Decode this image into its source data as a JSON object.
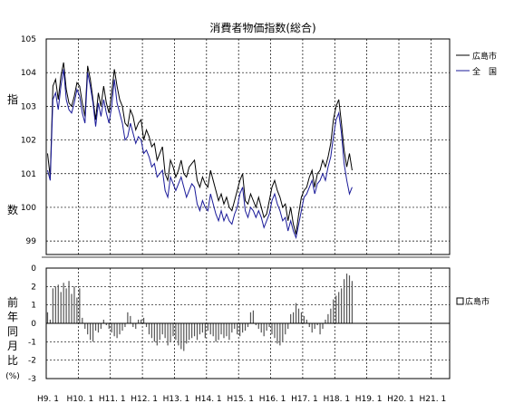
{
  "chart_data": [
    {
      "type": "line",
      "title": "消費者物価指数(総合)",
      "ylabel": [
        "指",
        "数"
      ],
      "ylim": [
        98.6,
        105
      ],
      "yticks": [
        99,
        100,
        101,
        102,
        103,
        104,
        105
      ],
      "grid": true,
      "legend_position": "right",
      "x_start": "H9.1",
      "x_step": "1 month",
      "series": [
        {
          "name": "広島市",
          "color": "#000000",
          "values": [
            101.6,
            100.9,
            103.6,
            103.8,
            103.2,
            103.9,
            104.3,
            103.5,
            103.1,
            103.0,
            103.3,
            103.7,
            103.6,
            103.1,
            102.7,
            104.2,
            103.8,
            103.2,
            102.6,
            103.4,
            103.0,
            103.6,
            103.1,
            102.8,
            103.4,
            104.1,
            103.6,
            103.2,
            103.0,
            102.5,
            102.4,
            102.9,
            102.7,
            102.3,
            102.5,
            102.6,
            102.0,
            102.3,
            102.1,
            101.8,
            101.9,
            101.4,
            101.6,
            101.8,
            101.0,
            100.8,
            101.4,
            101.2,
            100.9,
            101.1,
            101.4,
            101.0,
            100.9,
            101.2,
            101.3,
            101.4,
            100.8,
            100.6,
            100.9,
            100.7,
            100.6,
            101.1,
            100.8,
            100.5,
            100.2,
            100.4,
            100.1,
            100.3,
            100.0,
            99.9,
            100.2,
            100.5,
            100.8,
            101.0,
            100.2,
            100.1,
            100.4,
            100.2,
            100.0,
            100.3,
            100.0,
            99.7,
            99.8,
            100.2,
            100.6,
            100.8,
            100.5,
            100.3,
            100.0,
            100.1,
            99.6,
            100.0,
            99.5,
            99.2,
            99.8,
            100.3,
            100.5,
            100.6,
            100.9,
            101.1,
            100.6,
            101.0,
            101.1,
            101.4,
            101.2,
            101.5,
            101.9,
            102.6,
            103.0,
            103.2,
            102.5,
            101.7,
            101.2,
            101.6,
            101.1
          ]
        },
        {
          "name": "全　国",
          "color": "#1a1a99",
          "values": [
            101.1,
            100.8,
            103.2,
            103.4,
            102.9,
            103.6,
            104.1,
            103.2,
            102.9,
            102.8,
            103.1,
            103.5,
            103.3,
            102.8,
            102.5,
            104.0,
            103.6,
            103.1,
            102.4,
            103.1,
            102.7,
            103.2,
            102.8,
            102.5,
            103.0,
            103.8,
            103.1,
            102.8,
            102.5,
            102.0,
            102.1,
            102.5,
            102.2,
            101.9,
            102.1,
            102.0,
            101.6,
            101.7,
            101.5,
            101.2,
            101.3,
            100.9,
            101.0,
            101.1,
            100.5,
            100.3,
            100.9,
            100.7,
            100.5,
            100.7,
            100.9,
            100.6,
            100.3,
            100.5,
            100.7,
            100.6,
            100.1,
            99.9,
            100.2,
            100.0,
            99.9,
            100.4,
            100.1,
            99.8,
            99.6,
            99.9,
            99.6,
            99.8,
            99.6,
            99.5,
            99.8,
            100.0,
            100.4,
            100.6,
            99.9,
            99.7,
            100.0,
            99.9,
            99.7,
            99.9,
            99.7,
            99.4,
            99.6,
            99.8,
            100.2,
            100.4,
            100.1,
            99.9,
            99.6,
            99.7,
            99.3,
            99.6,
            99.3,
            99.1,
            99.5,
            99.9,
            100.3,
            100.4,
            100.6,
            100.8,
            100.4,
            100.7,
            100.8,
            101.0,
            100.8,
            101.2,
            101.5,
            102.1,
            102.6,
            102.8,
            102.2,
            101.3,
            100.8,
            100.4,
            100.6
          ]
        }
      ]
    },
    {
      "type": "bar",
      "ylabel": [
        "前",
        "年",
        "同",
        "月",
        "比",
        "(%)"
      ],
      "ylim": [
        -3,
        3
      ],
      "yticks": [
        -3,
        -2,
        -1,
        0,
        1,
        2
      ],
      "top_tick": "0",
      "grid": true,
      "legend_position": "right",
      "x_start": "H9.1",
      "x_step": "1 month",
      "xtick_labels": [
        "H9. 1",
        "H10. 1",
        "H11. 1",
        "H12. 1",
        "H13. 1",
        "H14. 1",
        "H15. 1",
        "H16. 1",
        "H17. 1",
        "H18. 1",
        "H19. 1",
        "H20. 1",
        "H21. 1"
      ],
      "series": [
        {
          "name": "広島市",
          "values": [
            0.6,
            0.2,
            1.9,
            2.0,
            2.1,
            1.7,
            2.2,
            1.9,
            2.3,
            1.6,
            2.0,
            1.4,
            1.9,
            0.3,
            -0.3,
            -0.6,
            -0.9,
            -1.0,
            -0.4,
            -0.5,
            -0.3,
            0.2,
            -0.1,
            -0.3,
            -0.5,
            -0.7,
            -0.8,
            -0.6,
            -0.4,
            -0.2,
            0.6,
            0.4,
            -0.2,
            -0.3,
            0.2,
            0.2,
            0.3,
            -0.2,
            -0.6,
            -0.8,
            -1.0,
            -1.2,
            -0.9,
            -0.6,
            -0.8,
            -1.2,
            -1.0,
            -0.7,
            -0.9,
            -1.2,
            -1.4,
            -1.5,
            -1.1,
            -0.9,
            -0.8,
            -0.7,
            -0.9,
            -0.6,
            -0.5,
            -0.8,
            -0.4,
            -0.6,
            -0.7,
            -1.0,
            -0.9,
            -0.6,
            -0.8,
            -0.7,
            -0.9,
            -0.5,
            -0.3,
            -0.6,
            -0.7,
            -0.5,
            -0.4,
            -0.2,
            0.6,
            0.7,
            -0.1,
            -0.3,
            -0.5,
            -0.7,
            -0.4,
            -0.2,
            -0.6,
            -0.8,
            -1.1,
            -1.2,
            -1.0,
            -0.6,
            -0.3,
            0.5,
            0.6,
            1.1,
            0.8,
            0.6,
            0.4,
            0.2,
            -0.2,
            -0.5,
            -0.3,
            -0.1,
            -0.6,
            -0.3,
            0.2,
            0.5,
            0.8,
            1.3,
            1.5,
            1.7,
            1.9,
            2.4,
            2.7,
            2.6,
            2.3
          ]
        }
      ]
    }
  ]
}
